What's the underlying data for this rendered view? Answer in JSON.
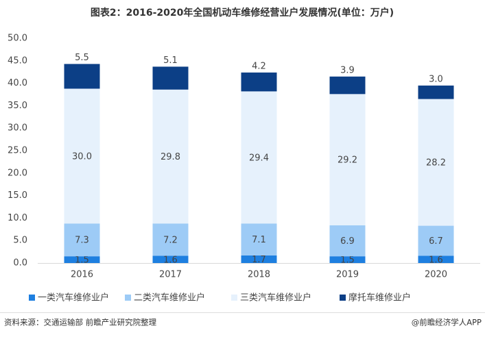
{
  "chart_data": {
    "type": "stacked_bar",
    "title": "图表2：2016-2020年全国机动车维修经营业户发展情况(单位：万户)",
    "categories": [
      "2016",
      "2017",
      "2018",
      "2019",
      "2020"
    ],
    "series": [
      {
        "name": "一类汽车维修业户",
        "color": "#1e7fe0",
        "values": [
          1.5,
          1.6,
          1.7,
          1.5,
          1.6
        ],
        "value_labels": [
          "1.5",
          "1.6",
          "1.7",
          "1.5",
          "1.6"
        ]
      },
      {
        "name": "二类汽车维修业户",
        "color": "#9dcbf6",
        "values": [
          7.3,
          7.2,
          7.1,
          6.9,
          6.7
        ],
        "value_labels": [
          "7.3",
          "7.2",
          "7.1",
          "6.9",
          "6.7"
        ]
      },
      {
        "name": "三类汽车维修业户",
        "color": "#e6f1fc",
        "values": [
          30,
          29.8,
          29.4,
          29.2,
          28.2
        ],
        "value_labels": [
          "30.0",
          "29.8",
          "29.4",
          "29.2",
          "28.2"
        ]
      },
      {
        "name": "摩托车维修业户",
        "color": "#0c3f86",
        "values": [
          5.5,
          5.1,
          4.2,
          3.9,
          3
        ],
        "value_labels": [
          "5.5",
          "5.1",
          "4.2",
          "3.9",
          "3.0"
        ]
      }
    ],
    "ylim": [
      0,
      50
    ],
    "yticks": [
      {
        "value": 0,
        "label": "0.0"
      },
      {
        "value": 5,
        "label": "5.0"
      },
      {
        "value": 10,
        "label": "10.0"
      },
      {
        "value": 15,
        "label": "15.0"
      },
      {
        "value": 20,
        "label": "20.0"
      },
      {
        "value": 25,
        "label": "25.0"
      },
      {
        "value": 30,
        "label": "30.0"
      },
      {
        "value": 35,
        "label": "35.0"
      },
      {
        "value": 40,
        "label": "40.0"
      },
      {
        "value": 45,
        "label": "45.0"
      },
      {
        "value": 50,
        "label": "50.0"
      }
    ],
    "grid": false,
    "source": "资料来源：交通运输部 前瞻产业研究院整理",
    "credit": "@前瞻经济学人APP"
  }
}
